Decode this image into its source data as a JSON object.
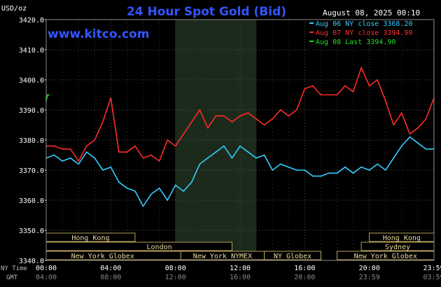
{
  "chart_data": {
    "type": "line",
    "title": "24 Hour Spot Gold (Bid)",
    "website": "www.kitco.com",
    "timestamp": "August 08, 2025 00:10",
    "unit_label": "USD/oz",
    "y_ticks": [
      "3420.0",
      "3410.0",
      "3400.0",
      "3390.0",
      "3380.0",
      "3370.0",
      "3360.0",
      "3350.0",
      "3340.0"
    ],
    "ylim": [
      3340,
      3420
    ],
    "x_ticks_ny": [
      "00:00",
      "04:00",
      "08:00",
      "12:00",
      "16:00",
      "20:00",
      "23:59"
    ],
    "x_ticks_gmt": [
      "04:00",
      "08:00",
      "12:00",
      "16:00",
      "20:00",
      "23:59",
      "03:59"
    ],
    "x_row_labels": {
      "ny": "NY Time",
      "gmt": "GMT"
    },
    "grid": true,
    "legend_placement": "top-right",
    "legend": [
      {
        "label": "Aug 06 NY close 3368.20",
        "color": "#33ccff"
      },
      {
        "label": "Aug 07 NY close 3394.90",
        "color": "#ff2a2a"
      },
      {
        "label": "Aug 08 Last 3394.90",
        "color": "#22dd22"
      }
    ],
    "sessions_shaded": [
      {
        "name": "London",
        "start_hour": 8.0,
        "end_hour": 13.0
      }
    ],
    "market_bars": [
      {
        "label": "Hong Kong",
        "start_hour": 0.0,
        "end_hour": 5.5,
        "row": 0
      },
      {
        "label": "London",
        "start_hour": 0.0,
        "end_hour": 11.5,
        "row": 1,
        "label_hour": 7.0
      },
      {
        "label": "New York Globex",
        "start_hour": 0.0,
        "end_hour": 17.0,
        "row": 2,
        "label_hour": 3.5
      },
      {
        "label": "New York NYMEX",
        "start_hour": 8.33,
        "end_hour": 13.5,
        "row": 2
      },
      {
        "label": "NY Globex",
        "start_hour": 13.5,
        "end_hour": 17.0,
        "row": 2
      },
      {
        "label": "Hong Kong",
        "start_hour": 20.0,
        "end_hour": 24.0,
        "row": 0
      },
      {
        "label": "Sydney",
        "start_hour": 19.5,
        "end_hour": 24.0,
        "row": 1
      },
      {
        "label": "New York Globex",
        "start_hour": 18.0,
        "end_hour": 24.0,
        "row": 2
      }
    ],
    "series": [
      {
        "name": "Aug 06 NY close 3368.20",
        "color": "#33ccff",
        "x": [
          0,
          0.5,
          1,
          1.5,
          2,
          2.5,
          3,
          3.5,
          4,
          4.5,
          5,
          5.5,
          6,
          6.5,
          7,
          7.5,
          8,
          8.5,
          9,
          9.5,
          10,
          10.5,
          11,
          11.5,
          12,
          12.5,
          13,
          13.5,
          14,
          14.5,
          15,
          15.5,
          16,
          16.5,
          17,
          17.5,
          18,
          18.5,
          19,
          19.5,
          20,
          20.5,
          21,
          21.5,
          22,
          22.5,
          23,
          23.5,
          24
        ],
        "values": [
          3374,
          3375,
          3373,
          3374,
          3372,
          3376,
          3374,
          3370,
          3371,
          3366,
          3364,
          3363,
          3358,
          3362,
          3364,
          3360,
          3365,
          3363,
          3366,
          3372,
          3374,
          3376,
          3378,
          3374,
          3378,
          3376,
          3374,
          3375,
          3370,
          3372,
          3371,
          3370,
          3370,
          3368,
          3368,
          3369,
          3369,
          3371,
          3369,
          3371,
          3370,
          3372,
          3370,
          3374,
          3378,
          3381,
          3379,
          3377,
          3377
        ]
      },
      {
        "name": "Aug 07 NY close 3394.90",
        "color": "#ff2a2a",
        "x": [
          0,
          0.5,
          1,
          1.5,
          2,
          2.5,
          3,
          3.5,
          4,
          4.5,
          5,
          5.5,
          6,
          6.5,
          7,
          7.5,
          8,
          8.5,
          9,
          9.5,
          10,
          10.5,
          11,
          11.5,
          12,
          12.5,
          13,
          13.5,
          14,
          14.5,
          15,
          15.5,
          16,
          16.5,
          17,
          17.5,
          18,
          18.5,
          19,
          19.5,
          20,
          20.5,
          21,
          21.5,
          22,
          22.5,
          23,
          23.5,
          24
        ],
        "values": [
          3378,
          3378,
          3377,
          3377,
          3373,
          3378,
          3380,
          3386,
          3394,
          3376,
          3376,
          3378,
          3374,
          3375,
          3373,
          3380,
          3378,
          3382,
          3386,
          3390,
          3384,
          3388,
          3388,
          3386,
          3388,
          3389,
          3387,
          3385,
          3387,
          3390,
          3388,
          3390,
          3397,
          3398,
          3395,
          3395,
          3395,
          3398,
          3396,
          3404,
          3398,
          3400,
          3393,
          3385,
          3389,
          3382,
          3384,
          3387,
          3394
        ]
      },
      {
        "name": "Aug 08 Last 3394.90",
        "color": "#22dd22",
        "x": [
          0,
          0.08,
          0.16
        ],
        "values": [
          3393,
          3395,
          3394.9
        ]
      }
    ]
  }
}
